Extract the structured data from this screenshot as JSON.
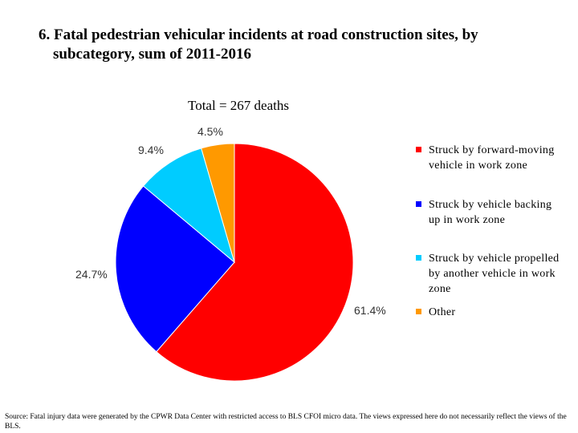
{
  "title_line1": "6. Fatal pedestrian vehicular incidents at road construction sites, by",
  "title_line2": "subcategory, sum of 2011-2016",
  "subtitle": "Total = 267 deaths",
  "source": "Source: Fatal injury data were generated by the CPWR Data Center with restricted access to BLS CFOI micro data. The views expressed here do not necessarily reflect the views of the BLS.",
  "chart_data": {
    "type": "pie",
    "title": "Total = 267 deaths",
    "legend_position": "right",
    "slices": [
      {
        "name": "Struck by forward-moving vehicle in work zone",
        "value": 61.4,
        "label": "61.4%",
        "color": "#ff0000"
      },
      {
        "name": "Struck by vehicle backing up in work zone",
        "value": 24.7,
        "label": "24.7%",
        "color": "#0000ff"
      },
      {
        "name": "Struck by vehicle propelled by another vehicle in work zone",
        "value": 9.4,
        "label": "9.4%",
        "color": "#00ccff"
      },
      {
        "name": "Other",
        "value": 4.5,
        "label": "4.5%",
        "color": "#ff9900"
      }
    ]
  }
}
